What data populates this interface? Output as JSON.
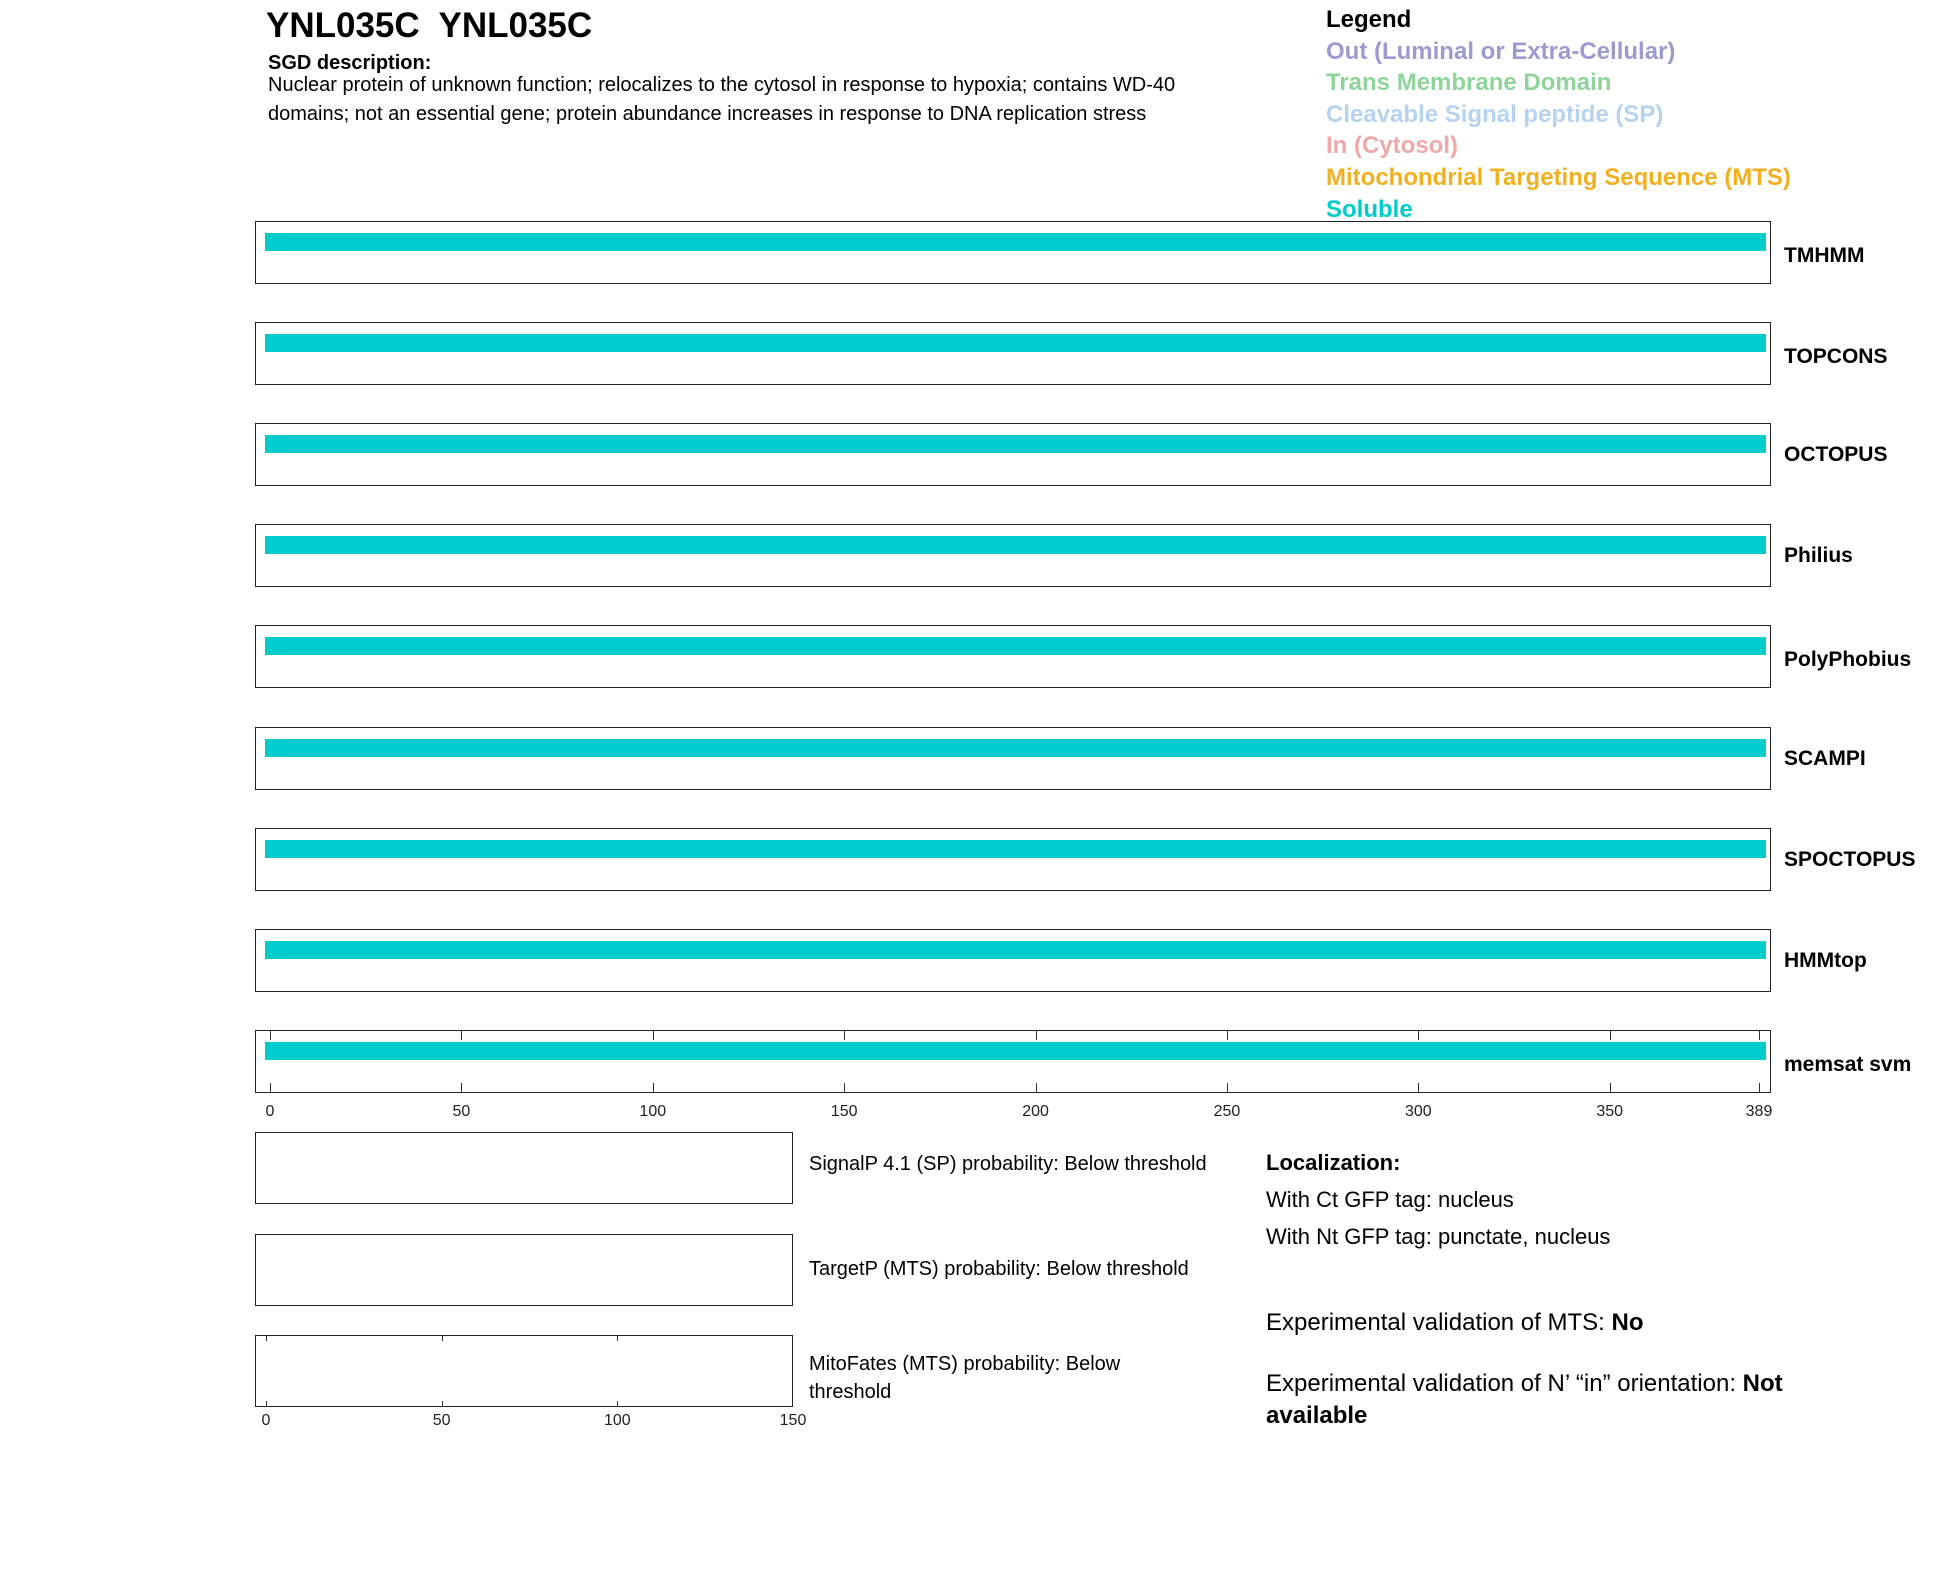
{
  "title": "YNL035C  YNL035C",
  "sgd": {
    "heading": "SGD description:",
    "text": "Nuclear protein of unknown function; relocalizes to the cytosol in response to hypoxia; contains WD-40 domains; not an essential gene; protein abundance increases in response to DNA replication stress"
  },
  "legend": {
    "title": "Legend",
    "items": [
      {
        "label": "Out (Luminal or Extra-Cellular)",
        "color": "#9b9bd0"
      },
      {
        "label": "Trans Membrane Domain",
        "color": "#8fd49a"
      },
      {
        "label": "Cleavable Signal peptide (SP)",
        "color": "#b5d3f0"
      },
      {
        "label": "In (Cytosol)",
        "color": "#f0a8a8"
      },
      {
        "label": "Mitochondrial Targeting Sequence (MTS)",
        "color": "#f0b020"
      },
      {
        "label": "Soluble",
        "color": "#00cccc"
      }
    ]
  },
  "chart_data": {
    "type": "bar",
    "xlim": [
      0,
      389
    ],
    "xticks": [
      0,
      50,
      100,
      150,
      200,
      250,
      300,
      350,
      389
    ],
    "tracks": [
      {
        "name": "TMHMM",
        "segments": [
          {
            "start": 0,
            "end": 389,
            "type": "Soluble"
          }
        ]
      },
      {
        "name": "TOPCONS",
        "segments": [
          {
            "start": 0,
            "end": 389,
            "type": "Soluble"
          }
        ]
      },
      {
        "name": "OCTOPUS",
        "segments": [
          {
            "start": 0,
            "end": 389,
            "type": "Soluble"
          }
        ]
      },
      {
        "name": "Philius",
        "segments": [
          {
            "start": 0,
            "end": 389,
            "type": "Soluble"
          }
        ]
      },
      {
        "name": "PolyPhobius",
        "segments": [
          {
            "start": 0,
            "end": 389,
            "type": "Soluble"
          }
        ]
      },
      {
        "name": "SCAMPI",
        "segments": [
          {
            "start": 0,
            "end": 389,
            "type": "Soluble"
          }
        ]
      },
      {
        "name": "SPOCTOPUS",
        "segments": [
          {
            "start": 0,
            "end": 389,
            "type": "Soluble"
          }
        ]
      },
      {
        "name": "HMMtop",
        "segments": [
          {
            "start": 0,
            "end": 389,
            "type": "Soluble"
          }
        ]
      },
      {
        "name": "memsat svm",
        "segments": [
          {
            "start": 0,
            "end": 389,
            "type": "Soluble"
          }
        ]
      }
    ],
    "small_xlim": [
      0,
      150
    ],
    "small_xticks": [
      0,
      50,
      100,
      150
    ]
  },
  "predictions": [
    "SignalP 4.1 (SP) probability: Below threshold",
    "TargetP (MTS) probability: Below threshold",
    "MitoFates (MTS) probability: Below threshold"
  ],
  "localization": {
    "heading": "Localization:",
    "ct": "With Ct GFP tag: nucleus",
    "nt": "With Nt GFP tag: punctate, nucleus",
    "mts_label": "Experimental validation of MTS: ",
    "mts_value": "No",
    "nin_label": "Experimental validation of N’ “in” orientation: ",
    "nin_value": "Not available"
  }
}
